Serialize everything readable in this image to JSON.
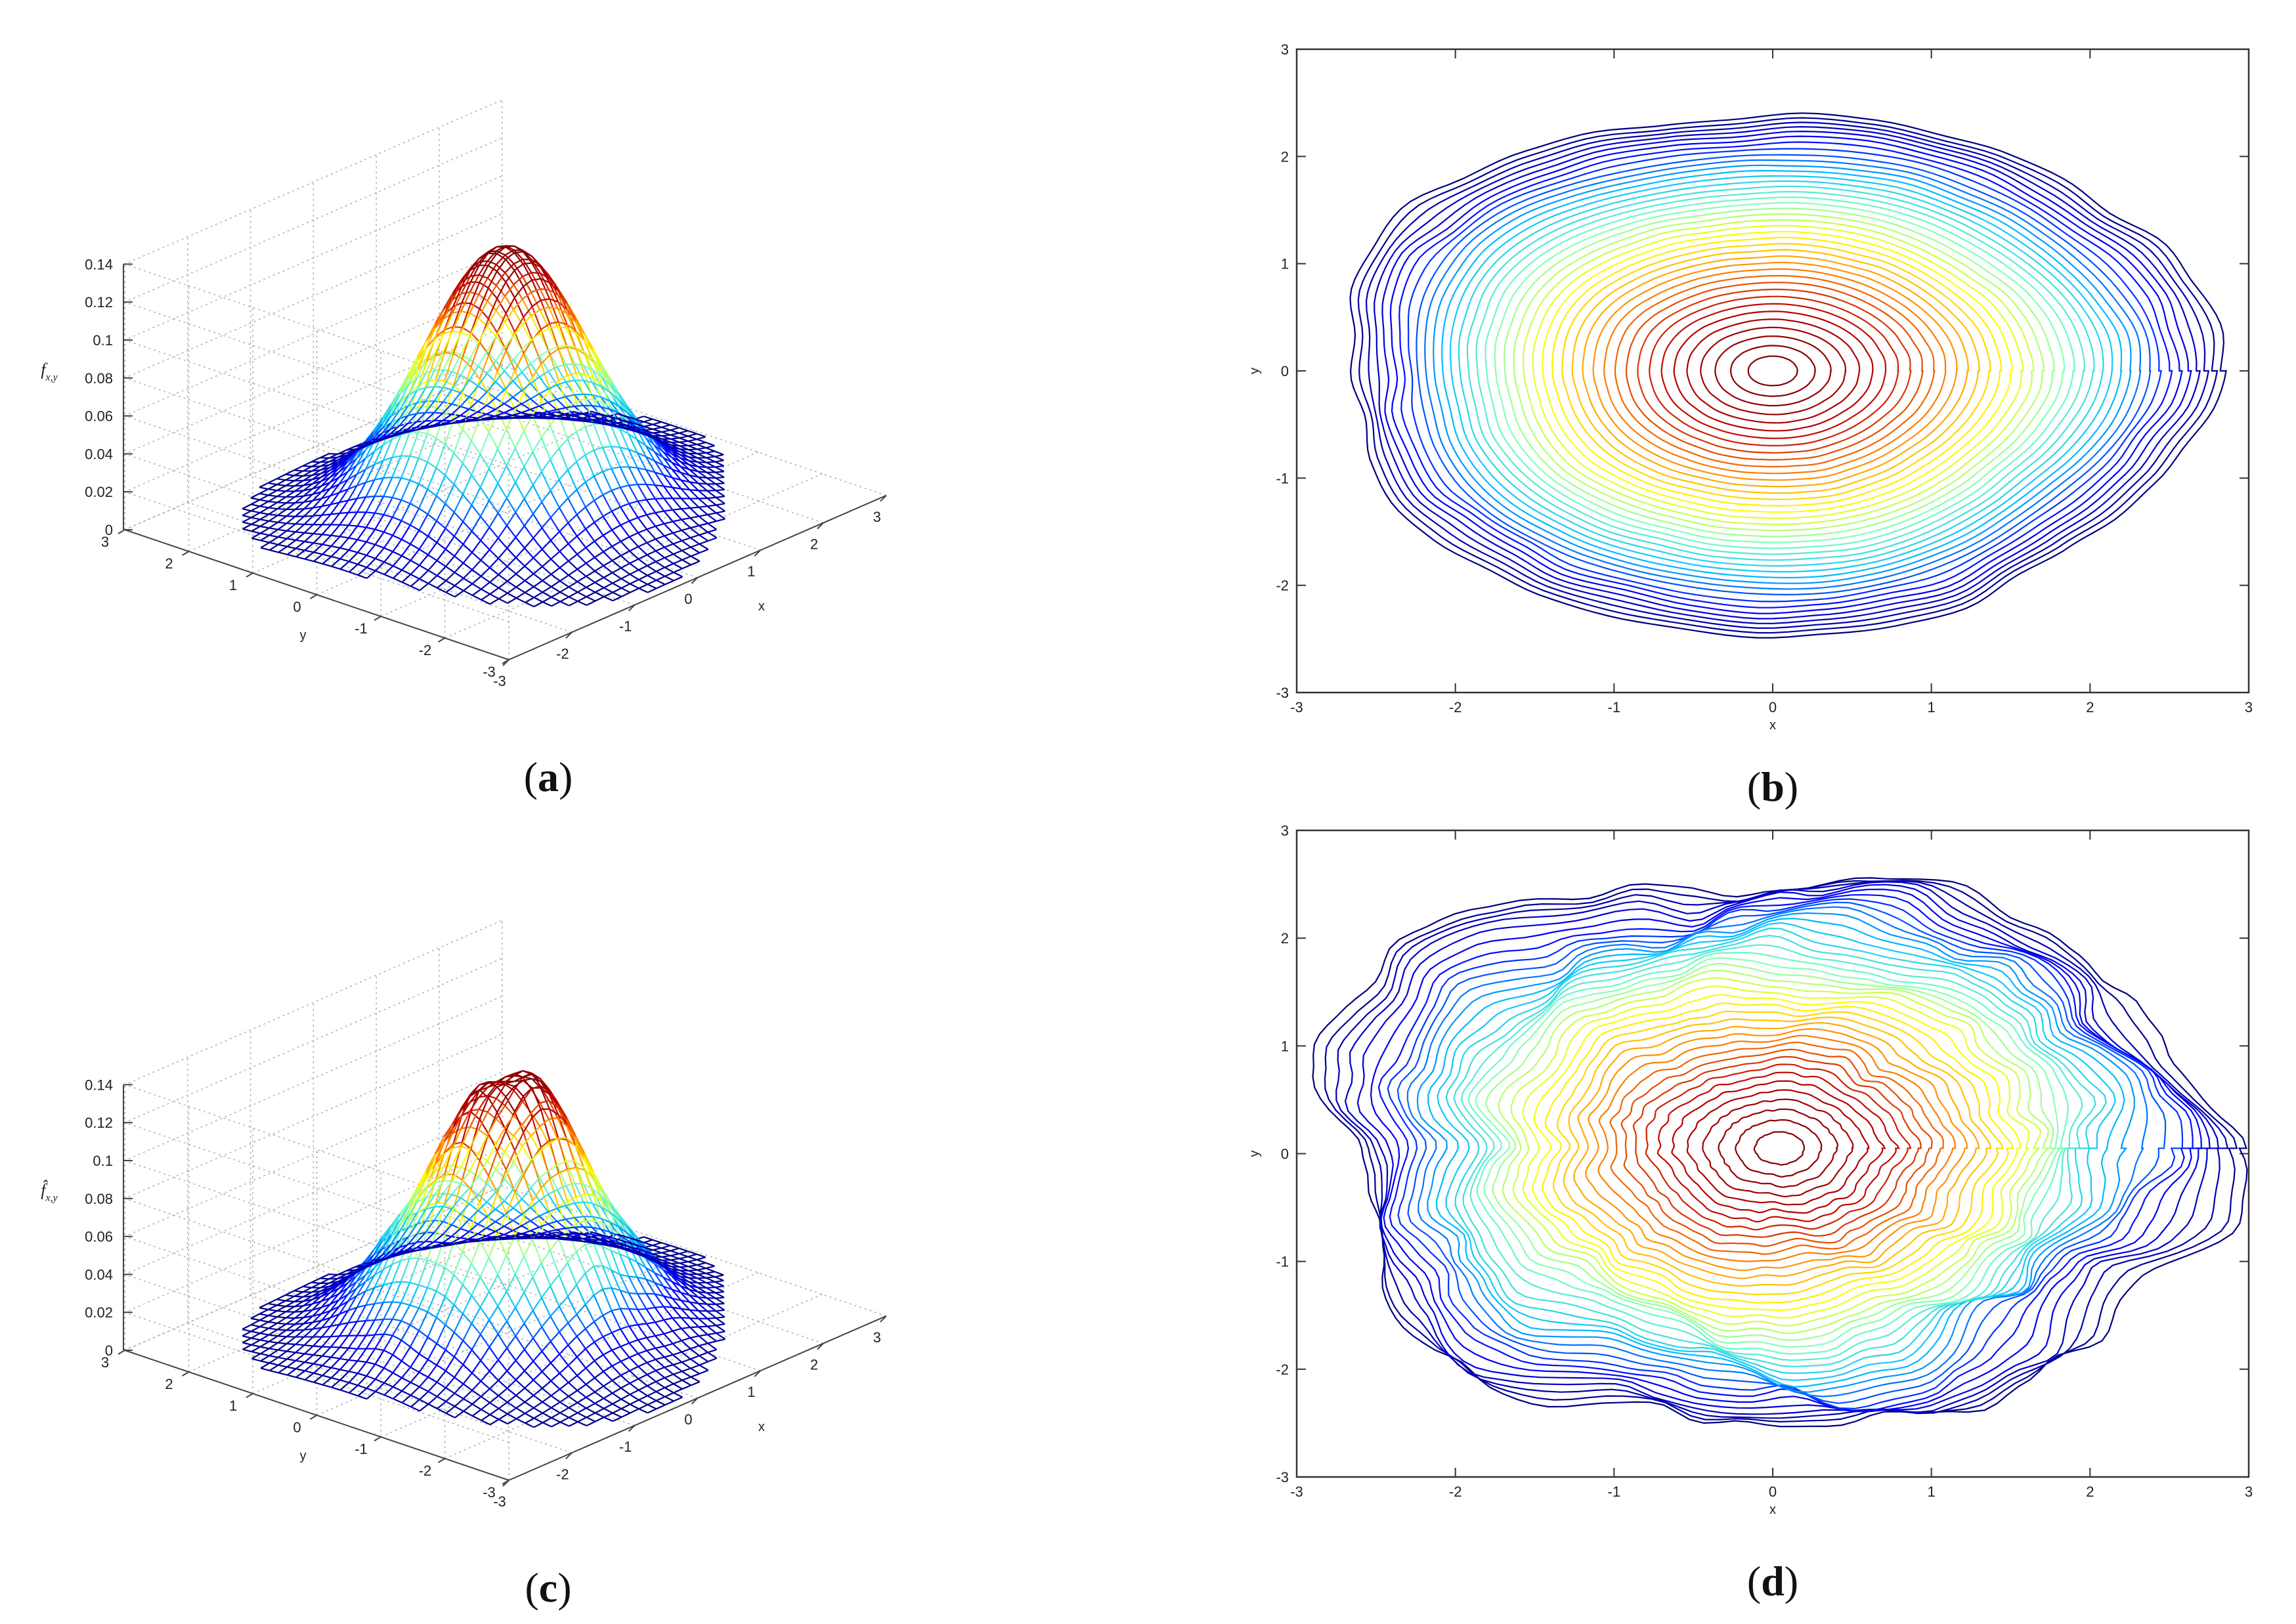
{
  "chart_data": [
    {
      "type": "surface",
      "panel_label": "a",
      "zlabel": "f",
      "zlabel_sub": "x,y",
      "zlim": [
        0,
        0.14
      ],
      "z_ticks": [
        "0",
        "0.02",
        "0.04",
        "0.06",
        "0.08",
        "0.1",
        "0.12",
        "0.14"
      ],
      "x_ticks": [
        "-3",
        "-2",
        "-1",
        "0",
        "1",
        "2",
        "3"
      ],
      "y_ticks": [
        "3",
        "2",
        "1",
        "0",
        "-1",
        "-2",
        "-3"
      ],
      "xlabel": "x",
      "ylabel": "y",
      "peak": 0.14,
      "sigma_x": 0.95,
      "sigma_y": 0.95,
      "noisy": false
    },
    {
      "type": "contour",
      "panel_label": "b",
      "xlabel": "x",
      "ylabel": "y",
      "xlim": [
        -3,
        3
      ],
      "ylim": [
        -3,
        3
      ],
      "x_ticks": [
        "-3",
        "-2",
        "-1",
        "0",
        "1",
        "2",
        "3"
      ],
      "y_ticks": [
        "-3",
        "-2",
        "-1",
        "0",
        "1",
        "2",
        "3"
      ],
      "levels": 40,
      "outer_radius_x": 2.75,
      "outer_radius_y": 2.65,
      "noisy": false
    },
    {
      "type": "surface",
      "panel_label": "c",
      "zlabel": "f̂",
      "zlabel_sub": "x,y",
      "zlim": [
        0,
        0.14
      ],
      "z_ticks": [
        "0",
        "0.02",
        "0.04",
        "0.06",
        "0.08",
        "0.1",
        "0.12",
        "0.14"
      ],
      "x_ticks": [
        "-3",
        "-2",
        "-1",
        "0",
        "1",
        "2",
        "3"
      ],
      "y_ticks": [
        "3",
        "2",
        "1",
        "0",
        "-1",
        "-2",
        "-3"
      ],
      "xlabel": "x",
      "ylabel": "y",
      "peak": 0.138,
      "sigma_x": 0.95,
      "sigma_y": 0.95,
      "noisy": true
    },
    {
      "type": "contour",
      "panel_label": "d",
      "xlabel": "x",
      "ylabel": "y",
      "xlim": [
        -3,
        3
      ],
      "ylim": [
        -3,
        3
      ],
      "x_ticks": [
        "-3",
        "-2",
        "-1",
        "0",
        "1",
        "2",
        "3"
      ],
      "y_ticks": [
        "-3",
        "-2",
        "-1",
        "0",
        "1",
        "2",
        "3"
      ],
      "levels": 40,
      "outer_radius_x": 2.8,
      "outer_radius_y": 2.75,
      "noisy": true
    }
  ],
  "colormap": [
    "#00007f",
    "#0000ff",
    "#00bfff",
    "#7fffbf",
    "#ffff00",
    "#ff7f00",
    "#bf0000",
    "#7f0000"
  ]
}
